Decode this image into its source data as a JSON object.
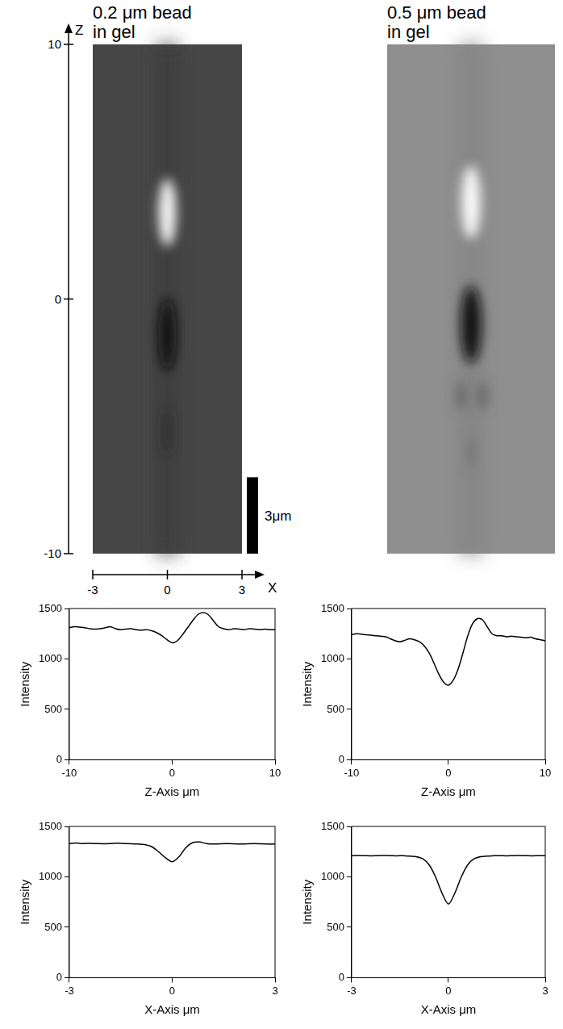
{
  "images": [
    {
      "title": "0.2 μm bead in gel",
      "x_label": "X",
      "y_label": "Z",
      "xlim": [
        -3,
        3
      ],
      "xticks": [
        -3,
        0,
        3
      ],
      "ylim": [
        -10,
        10
      ],
      "yticks": [
        -10,
        0,
        10
      ],
      "scale_bar": {
        "label": "3μm",
        "length": 3
      }
    },
    {
      "title": "0.5 μm bead in gel"
    }
  ],
  "chart_data": [
    {
      "type": "line",
      "x_label": "Z-Axis μm",
      "y_label": "Intensity",
      "color": "#000000",
      "grid": false,
      "xlim": [
        -10,
        10
      ],
      "xticks": [
        -10,
        0,
        10
      ],
      "ylim": [
        0,
        1500
      ],
      "yticks": [
        0,
        500,
        1000,
        1500
      ],
      "x": [
        -10,
        -9.5,
        -9,
        -8.5,
        -8,
        -7.5,
        -7,
        -6.5,
        -6,
        -5.5,
        -5,
        -4.5,
        -4,
        -3.5,
        -3,
        -2.5,
        -2,
        -1.5,
        -1,
        -0.5,
        0,
        0.5,
        1,
        1.5,
        2,
        2.5,
        3,
        3.5,
        4,
        4.5,
        5,
        5.5,
        6,
        6.5,
        7,
        7.5,
        8,
        8.5,
        9,
        9.5,
        10
      ],
      "values": [
        1310,
        1320,
        1315,
        1310,
        1300,
        1295,
        1300,
        1310,
        1320,
        1300,
        1290,
        1295,
        1300,
        1290,
        1285,
        1290,
        1280,
        1260,
        1230,
        1190,
        1160,
        1180,
        1240,
        1310,
        1380,
        1440,
        1460,
        1440,
        1380,
        1320,
        1300,
        1290,
        1300,
        1295,
        1290,
        1300,
        1295,
        1290,
        1295,
        1290,
        1290
      ]
    },
    {
      "type": "line",
      "x_label": "Z-Axis μm",
      "y_label": "Intensity",
      "color": "#000000",
      "grid": false,
      "xlim": [
        -10,
        10
      ],
      "xticks": [
        -10,
        0,
        10
      ],
      "ylim": [
        0,
        1500
      ],
      "yticks": [
        0,
        500,
        1000,
        1500
      ],
      "x": [
        -10,
        -9.5,
        -9,
        -8.5,
        -8,
        -7.5,
        -7,
        -6.5,
        -6,
        -5.5,
        -5,
        -4.5,
        -4,
        -3.5,
        -3,
        -2.5,
        -2,
        -1.5,
        -1,
        -0.5,
        0,
        0.5,
        1,
        1.5,
        2,
        2.5,
        3,
        3.5,
        4,
        4.5,
        5,
        5.5,
        6,
        6.5,
        7,
        7.5,
        8,
        8.5,
        9,
        9.5,
        10
      ],
      "values": [
        1240,
        1250,
        1245,
        1240,
        1235,
        1230,
        1225,
        1220,
        1200,
        1180,
        1170,
        1185,
        1200,
        1190,
        1170,
        1130,
        1060,
        960,
        850,
        770,
        740,
        790,
        900,
        1060,
        1230,
        1350,
        1400,
        1390,
        1320,
        1250,
        1230,
        1230,
        1220,
        1225,
        1220,
        1215,
        1210,
        1215,
        1200,
        1190,
        1180
      ]
    },
    {
      "type": "line",
      "x_label": "X-Axis μm",
      "y_label": "Intensity",
      "color": "#000000",
      "grid": false,
      "xlim": [
        -3,
        3
      ],
      "xticks": [
        -3,
        0,
        3
      ],
      "ylim": [
        0,
        1500
      ],
      "yticks": [
        0,
        500,
        1000,
        1500
      ],
      "x": [
        -3,
        -2.8,
        -2.6,
        -2.4,
        -2.2,
        -2,
        -1.8,
        -1.6,
        -1.4,
        -1.2,
        -1,
        -0.8,
        -0.6,
        -0.4,
        -0.2,
        0,
        0.2,
        0.4,
        0.6,
        0.8,
        1,
        1.2,
        1.4,
        1.6,
        1.8,
        2,
        2.2,
        2.4,
        2.6,
        2.8,
        3
      ],
      "values": [
        1330,
        1335,
        1330,
        1332,
        1330,
        1328,
        1330,
        1333,
        1330,
        1328,
        1325,
        1320,
        1300,
        1250,
        1190,
        1150,
        1200,
        1290,
        1340,
        1345,
        1330,
        1325,
        1328,
        1330,
        1328,
        1325,
        1328,
        1330,
        1327,
        1325,
        1325
      ]
    },
    {
      "type": "line",
      "x_label": "X-Axis μm",
      "y_label": "Intensity",
      "color": "#000000",
      "grid": false,
      "xlim": [
        -3,
        3
      ],
      "xticks": [
        -3,
        0,
        3
      ],
      "ylim": [
        0,
        1500
      ],
      "yticks": [
        0,
        500,
        1000,
        1500
      ],
      "x": [
        -3,
        -2.8,
        -2.6,
        -2.4,
        -2.2,
        -2,
        -1.8,
        -1.6,
        -1.4,
        -1.2,
        -1,
        -0.8,
        -0.6,
        -0.4,
        -0.2,
        0,
        0.2,
        0.4,
        0.6,
        0.8,
        1,
        1.2,
        1.4,
        1.6,
        1.8,
        2,
        2.2,
        2.4,
        2.6,
        2.8,
        3
      ],
      "values": [
        1210,
        1212,
        1210,
        1208,
        1210,
        1212,
        1210,
        1208,
        1210,
        1205,
        1200,
        1180,
        1120,
        1000,
        840,
        730,
        840,
        1000,
        1120,
        1180,
        1200,
        1205,
        1210,
        1210,
        1208,
        1210,
        1212,
        1210,
        1208,
        1210,
        1210
      ]
    }
  ]
}
